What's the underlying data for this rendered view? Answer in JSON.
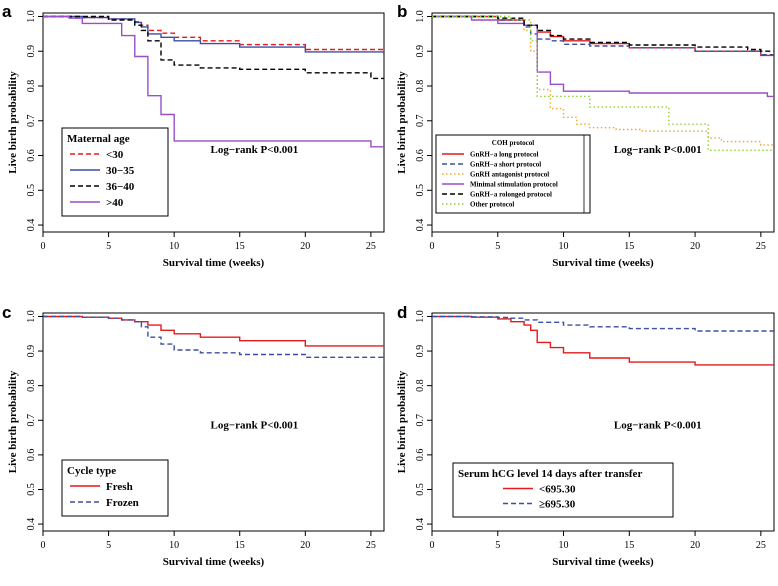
{
  "chart_data": [
    {
      "type": "line",
      "panel": "a",
      "title": "",
      "xlabel": "Survival time (weeks)",
      "ylabel": "Live birth probability",
      "xlim": [
        0,
        26
      ],
      "ylim": [
        0.38,
        1.01
      ],
      "xticks": [
        0,
        5,
        10,
        15,
        20,
        25
      ],
      "yticks": [
        0.4,
        0.5,
        0.6,
        0.7,
        0.8,
        0.9,
        1.0
      ],
      "ytick_labels": [
        "0.4",
        "0.5",
        "0.6",
        "0.7",
        "0.8",
        "0.9",
        "1.0"
      ],
      "annotation": "Log−rank P<0.001",
      "legend": {
        "title": "Maternal age",
        "position": "bottom-left",
        "size": "large"
      },
      "series": [
        {
          "name": "<30",
          "color": "#e41a1c",
          "dash": "dash",
          "x": [
            0,
            3,
            5,
            7,
            7.5,
            8,
            9,
            10,
            12,
            15,
            20,
            26
          ],
          "y": [
            1,
            0.997,
            0.993,
            0.985,
            0.975,
            0.96,
            0.952,
            0.94,
            0.93,
            0.919,
            0.905,
            0.888
          ]
        },
        {
          "name": "30−35",
          "color": "#3a4fa3",
          "dash": "solid",
          "x": [
            0,
            3,
            5,
            7,
            7.5,
            8,
            9,
            10,
            12,
            15,
            20,
            26
          ],
          "y": [
            1,
            0.997,
            0.993,
            0.983,
            0.97,
            0.95,
            0.94,
            0.93,
            0.922,
            0.912,
            0.898,
            0.882
          ]
        },
        {
          "name": "36−40",
          "color": "#000000",
          "dash": "dash",
          "x": [
            0,
            5,
            7,
            7.5,
            8,
            9,
            10,
            12,
            15,
            20,
            25,
            26
          ],
          "y": [
            1,
            0.99,
            0.975,
            0.96,
            0.93,
            0.875,
            0.86,
            0.852,
            0.848,
            0.838,
            0.822,
            0.822
          ]
        },
        {
          "name": ">40",
          "color": "#9b4fc4",
          "dash": "solid",
          "x": [
            0,
            2,
            3,
            6,
            7,
            8,
            9,
            10,
            12,
            20,
            25,
            26
          ],
          "y": [
            1,
            0.995,
            0.98,
            0.945,
            0.885,
            0.772,
            0.718,
            0.642,
            0.642,
            0.642,
            0.625,
            0.625
          ]
        }
      ]
    },
    {
      "type": "line",
      "panel": "b",
      "title": "",
      "xlabel": "Survival time (weeks)",
      "ylabel": "Live birth probability",
      "xlim": [
        0,
        26
      ],
      "ylim": [
        0.38,
        1.01
      ],
      "xticks": [
        0,
        5,
        10,
        15,
        20,
        25
      ],
      "yticks": [
        0.4,
        0.5,
        0.6,
        0.7,
        0.8,
        0.9,
        1.0
      ],
      "ytick_labels": [
        "0.4",
        "0.5",
        "0.6",
        "0.7",
        "0.8",
        "0.9",
        "1.0"
      ],
      "annotation": "Log−rank P<0.001",
      "legend": {
        "title": "COH protocol",
        "position": "bottom-left",
        "size": "small"
      },
      "series": [
        {
          "name": "GnRH−a long protocol",
          "color": "#e41a1c",
          "dash": "solid",
          "x": [
            0,
            5,
            7,
            8,
            9,
            10,
            12,
            15,
            20,
            25,
            26
          ],
          "y": [
            1,
            0.99,
            0.975,
            0.955,
            0.942,
            0.93,
            0.922,
            0.91,
            0.9,
            0.888,
            0.885
          ]
        },
        {
          "name": "GnRH−a short protocol",
          "color": "#3a4fa3",
          "dash": "dash",
          "x": [
            0,
            5,
            7,
            7.5,
            8,
            9,
            10,
            12,
            15,
            20,
            25,
            26
          ],
          "y": [
            1,
            0.99,
            0.97,
            0.95,
            0.935,
            0.93,
            0.92,
            0.915,
            0.91,
            0.9,
            0.89,
            0.888
          ]
        },
        {
          "name": "GnRH antagonist protocol",
          "color": "#f0a830",
          "dash": "dot",
          "x": [
            0,
            6,
            7,
            7.5,
            8,
            9,
            10,
            11,
            12,
            14,
            16,
            20,
            21,
            22,
            24,
            25,
            26
          ],
          "y": [
            1,
            0.99,
            0.96,
            0.9,
            0.79,
            0.735,
            0.71,
            0.69,
            0.68,
            0.675,
            0.67,
            0.67,
            0.65,
            0.64,
            0.64,
            0.63,
            0.63
          ]
        },
        {
          "name": "Minimal stimulation protocol",
          "color": "#9b4fc4",
          "dash": "solid",
          "x": [
            0,
            3,
            5,
            7,
            8,
            9,
            10,
            12,
            15,
            20,
            25,
            25.5,
            26
          ],
          "y": [
            1,
            0.99,
            0.98,
            0.975,
            0.84,
            0.805,
            0.785,
            0.785,
            0.78,
            0.78,
            0.78,
            0.77,
            0.77
          ]
        },
        {
          "name": "GnRH−a rolonged protocol",
          "color": "#000000",
          "dash": "dash",
          "x": [
            0,
            5,
            7,
            8,
            9,
            10,
            12,
            15,
            20,
            24,
            25,
            26
          ],
          "y": [
            1,
            0.995,
            0.975,
            0.96,
            0.945,
            0.935,
            0.925,
            0.918,
            0.912,
            0.905,
            0.9,
            0.9
          ]
        },
        {
          "name": "Other protocol",
          "color": "#8fce3e",
          "dash": "dot",
          "x": [
            0,
            6,
            7.5,
            8,
            10,
            12,
            15,
            18,
            21,
            26
          ],
          "y": [
            1,
            0.99,
            0.93,
            0.77,
            0.77,
            0.74,
            0.74,
            0.69,
            0.615,
            0.615
          ]
        }
      ]
    },
    {
      "type": "line",
      "panel": "c",
      "title": "",
      "xlabel": "Survival time (weeks)",
      "ylabel": "Live birth probability",
      "xlim": [
        0,
        26
      ],
      "ylim": [
        0.38,
        1.01
      ],
      "xticks": [
        0,
        5,
        10,
        15,
        20,
        25
      ],
      "yticks": [
        0.4,
        0.5,
        0.6,
        0.7,
        0.8,
        0.9,
        1.0
      ],
      "ytick_labels": [
        "0.4",
        "0.5",
        "0.6",
        "0.7",
        "0.8",
        "0.9",
        "1.0"
      ],
      "annotation": "Log−rank P<0.001",
      "legend": {
        "title": "Cycle type",
        "position": "bottom-left",
        "size": "large"
      },
      "series": [
        {
          "name": "Fresh",
          "color": "#e41a1c",
          "dash": "solid",
          "x": [
            0,
            3,
            5,
            6,
            7,
            8,
            9,
            10,
            12,
            15,
            20,
            26
          ],
          "y": [
            1,
            0.998,
            0.995,
            0.99,
            0.985,
            0.975,
            0.96,
            0.95,
            0.94,
            0.93,
            0.915,
            0.898
          ]
        },
        {
          "name": "Frozen",
          "color": "#3a4fa3",
          "dash": "dash",
          "x": [
            0,
            3,
            5,
            6,
            7,
            7.5,
            8,
            9,
            10,
            12,
            15,
            20,
            26
          ],
          "y": [
            1,
            0.998,
            0.995,
            0.99,
            0.985,
            0.97,
            0.94,
            0.92,
            0.903,
            0.895,
            0.89,
            0.882,
            0.866
          ]
        }
      ]
    },
    {
      "type": "line",
      "panel": "d",
      "title": "",
      "xlabel": "Survival time (weeks)",
      "ylabel": "Live birth probability",
      "xlim": [
        0,
        26
      ],
      "ylim": [
        0.38,
        1.01
      ],
      "xticks": [
        0,
        5,
        10,
        15,
        20,
        25
      ],
      "yticks": [
        0.4,
        0.5,
        0.6,
        0.7,
        0.8,
        0.9,
        1.0
      ],
      "ytick_labels": [
        "0.4",
        "0.5",
        "0.6",
        "0.7",
        "0.8",
        "0.9",
        "1.0"
      ],
      "annotation": "Log−rank P<0.001",
      "legend": {
        "title": "Serum hCG level 14 days after transfer",
        "position": "bottom-left",
        "size": "wide"
      },
      "series": [
        {
          "name": "<695.30",
          "color": "#e41a1c",
          "dash": "solid",
          "x": [
            0,
            3,
            5,
            6,
            7,
            7.5,
            8,
            9,
            10,
            12,
            15,
            20,
            26
          ],
          "y": [
            1,
            0.998,
            0.993,
            0.985,
            0.975,
            0.96,
            0.925,
            0.91,
            0.895,
            0.88,
            0.868,
            0.86,
            0.848
          ]
        },
        {
          "name": "≥695.30",
          "color": "#3a4fa3",
          "dash": "dash",
          "x": [
            0,
            3,
            5,
            6,
            7,
            8,
            10,
            12,
            15,
            20,
            26
          ],
          "y": [
            1,
            0.999,
            0.997,
            0.995,
            0.99,
            0.983,
            0.975,
            0.97,
            0.965,
            0.958,
            0.945
          ]
        }
      ]
    }
  ]
}
